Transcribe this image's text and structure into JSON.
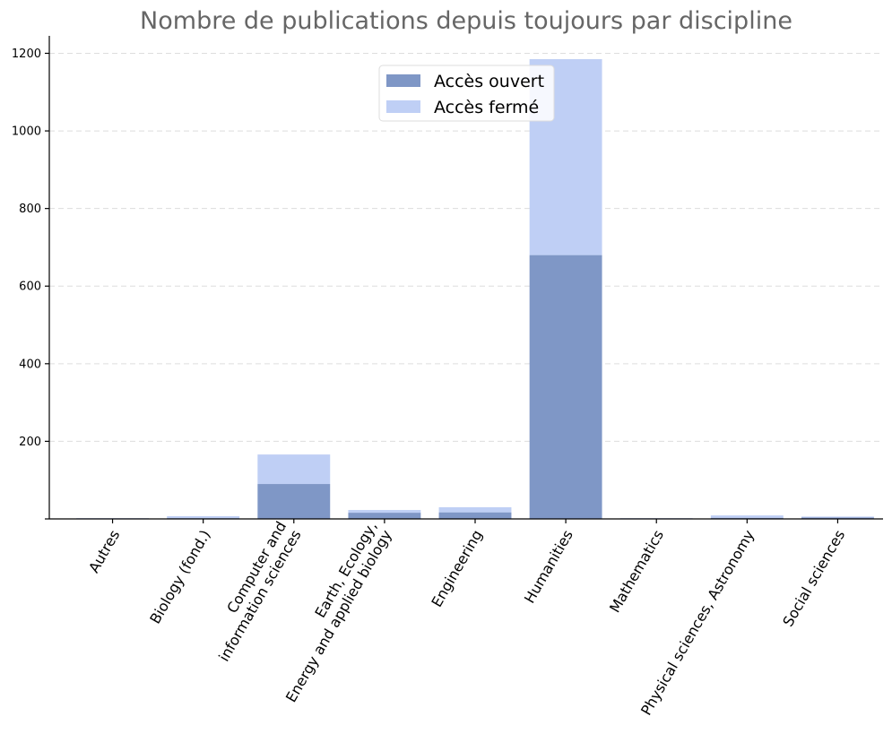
{
  "chart_data": {
    "type": "bar",
    "stacked": true,
    "title": "Nombre de publications depuis toujours par discipline",
    "xlabel": "",
    "ylabel": "",
    "categories": [
      [
        "Autres"
      ],
      [
        "Biology (fond.)"
      ],
      [
        "Computer and",
        "information sciences"
      ],
      [
        "Earth, Ecology,",
        "Energy and applied biology"
      ],
      [
        "Engineering"
      ],
      [
        "Humanities"
      ],
      [
        "Mathematics"
      ],
      [
        "Physical sciences, Astronomy"
      ],
      [
        "Social sciences"
      ]
    ],
    "series": [
      {
        "name": "Accès ouvert",
        "color": "#7f97c6",
        "values": [
          1,
          2,
          90,
          16,
          17,
          680,
          1,
          3,
          4
        ]
      },
      {
        "name": "Accès fermé",
        "color": "#bfcff5",
        "values": [
          1,
          5,
          76,
          7,
          13,
          505,
          1,
          6,
          2
        ]
      }
    ],
    "ylim": [
      0,
      1245
    ],
    "yticks": [
      200,
      400,
      600,
      800,
      1000,
      1200
    ],
    "grid": "y-dashed",
    "legend_position": "top-center"
  }
}
